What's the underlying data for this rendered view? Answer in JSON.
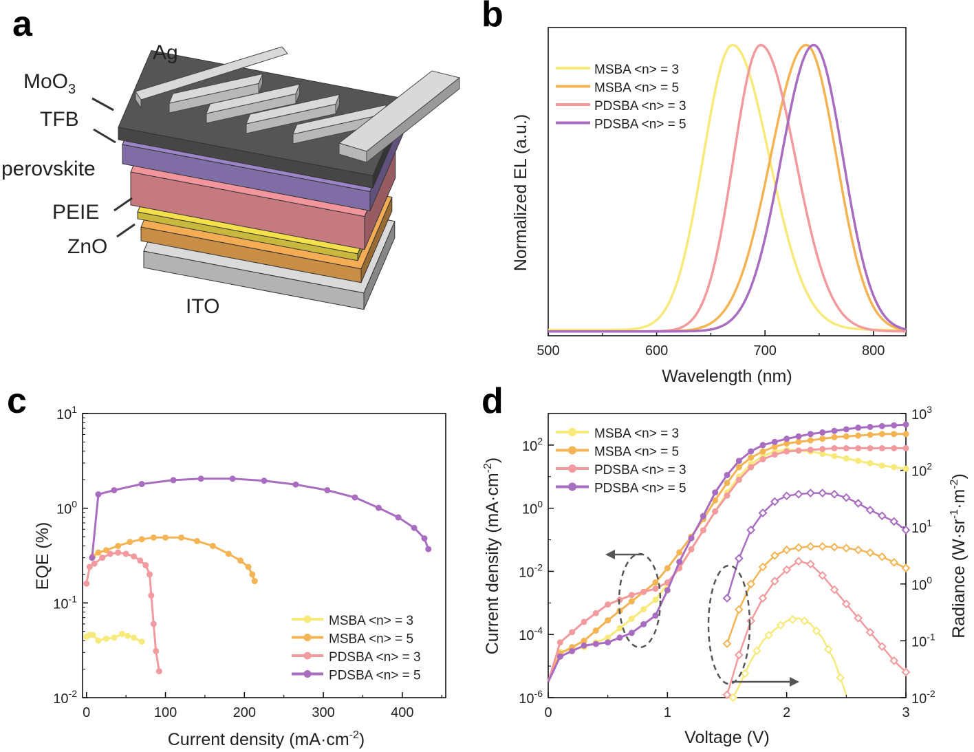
{
  "colors": {
    "msba3": "#f7e97a",
    "msba5": "#f4b454",
    "pdsba3": "#f29a9e",
    "pdsba5": "#a86cc0",
    "axis": "#000000",
    "text": "#222222",
    "arrow": "#555555"
  },
  "panel_a": {
    "letter": "a",
    "layers": {
      "ag": "Ag",
      "moo3": "MoO",
      "moo3_sub": "3",
      "tfb": "TFB",
      "perovskite": "perovskite",
      "peie": "PEIE",
      "zno": "ZnO",
      "ito": "ITO"
    },
    "layer_colors": {
      "ag": "#d2d2d2",
      "moo3": "#555555",
      "tfb": "#9d85c9",
      "perovskite": "#f2959c",
      "peie": "#f4e04a",
      "zno": "#f5ad55",
      "ito": "#dadada"
    }
  },
  "chart_data": [
    {
      "panel": "b",
      "type": "line",
      "xlabel": "Wavelength (nm)",
      "ylabel": "Normalized EL (a.u.)",
      "xlim": [
        500,
        830
      ],
      "ylim": [
        0,
        1.06
      ],
      "xticks": [
        "500",
        "600",
        "700",
        "800"
      ],
      "grid": false,
      "legend_position": "top-left",
      "series": [
        {
          "name": "MSBA <n> = 3",
          "color_key": "msba3",
          "peak": 670,
          "sigma_left": 27,
          "sigma_right": 34,
          "baseline": 0.02
        },
        {
          "name": "MSBA <n> = 5",
          "color_key": "msba5",
          "peak": 738,
          "sigma_left": 33,
          "sigma_right": 28,
          "baseline": 0.015
        },
        {
          "name": "PDSBA <n> = 3",
          "color_key": "pdsba3",
          "peak": 696,
          "sigma_left": 25,
          "sigma_right": 32,
          "baseline": 0.015
        },
        {
          "name": "PDSBA <n> = 5",
          "color_key": "pdsba5",
          "peak": 745,
          "sigma_left": 30,
          "sigma_right": 27,
          "baseline": 0.015
        }
      ]
    },
    {
      "panel": "c",
      "type": "scatter",
      "xlabel": "Current density (mA·cm",
      "xlabel_sup": "-2",
      "xlabel_end": ")",
      "ylabel": "EQE (%)",
      "xlim": [
        -5,
        455
      ],
      "ylim_log10": [
        -2,
        1
      ],
      "ytick_exponents": [
        "1",
        "0",
        "-1",
        "-2"
      ],
      "xticks": [
        "0",
        "100",
        "200",
        "300",
        "400"
      ],
      "grid": false,
      "legend_position": "bottom-right",
      "series": [
        {
          "name": "MSBA <n> = 3",
          "color_key": "msba3",
          "x": [
            0,
            4,
            8,
            15,
            25,
            35,
            45,
            52,
            60,
            70
          ],
          "y": [
            0.044,
            0.046,
            0.046,
            0.04,
            0.042,
            0.043,
            0.047,
            0.045,
            0.043,
            0.039
          ]
        },
        {
          "name": "MSBA <n> = 5",
          "color_key": "msba5",
          "x": [
            8,
            15,
            25,
            40,
            55,
            70,
            85,
            100,
            120,
            140,
            160,
            180,
            195,
            205,
            210,
            213
          ],
          "y": [
            0.31,
            0.34,
            0.36,
            0.4,
            0.44,
            0.47,
            0.49,
            0.49,
            0.49,
            0.45,
            0.4,
            0.33,
            0.28,
            0.24,
            0.2,
            0.17
          ]
        },
        {
          "name": "PDSBA <n> = 3",
          "color_key": "pdsba3",
          "x": [
            0,
            4,
            10,
            20,
            30,
            40,
            50,
            60,
            68,
            75,
            80,
            82,
            85,
            88,
            92
          ],
          "y": [
            0.16,
            0.24,
            0.26,
            0.3,
            0.33,
            0.34,
            0.33,
            0.31,
            0.28,
            0.25,
            0.2,
            0.12,
            0.06,
            0.031,
            0.019
          ]
        },
        {
          "name": "PDSBA <n> = 5",
          "color_key": "pdsba5",
          "x": [
            7,
            15,
            35,
            70,
            110,
            145,
            185,
            225,
            265,
            305,
            340,
            370,
            395,
            415,
            428,
            433
          ],
          "y": [
            0.3,
            1.4,
            1.55,
            1.8,
            1.98,
            2.05,
            2.05,
            1.95,
            1.78,
            1.55,
            1.3,
            1.01,
            0.8,
            0.62,
            0.48,
            0.37
          ]
        }
      ]
    },
    {
      "panel": "d",
      "type": "line",
      "xlabel": "Voltage (V)",
      "ylabel_left": "Current density (mA·cm",
      "ylabel_left_sup": "-2",
      "ylabel_left_end": ")",
      "ylabel_right": "Radiance (W·sr",
      "ylabel_right_sup1": "-1",
      "ylabel_right_mid": "·m",
      "ylabel_right_sup2": "-2",
      "ylabel_right_end": ")",
      "xlim": [
        0,
        3
      ],
      "xticks": [
        "0",
        "1",
        "2",
        "3"
      ],
      "ylim_left_log10": [
        -6,
        3
      ],
      "ytick_left_exponents": [
        "2",
        "0",
        "-2",
        "-4",
        "-6"
      ],
      "ylim_right_log10": [
        -2,
        3
      ],
      "ytick_right_exponents": [
        "3",
        "2",
        "1",
        "0",
        "-1",
        "-2"
      ],
      "grid": false,
      "legend_position": "top-left",
      "current_density": [
        {
          "name": "MSBA <n> = 3",
          "color_key": "msba3",
          "v": [
            0,
            0.1,
            0.3,
            0.5,
            0.7,
            0.9,
            1.0,
            1.1,
            1.2,
            1.3,
            1.4,
            1.5,
            1.6,
            1.7,
            1.8,
            1.9,
            2.0,
            2.2,
            2.4,
            2.6,
            2.8,
            3.0
          ],
          "log10_j": [
            -5.5,
            -4.55,
            -4.4,
            -4.1,
            -3.5,
            -2.9,
            -2.4,
            -1.9,
            -1.3,
            -0.7,
            -0.1,
            0.5,
            1.0,
            1.4,
            1.65,
            1.8,
            1.85,
            1.8,
            1.65,
            1.5,
            1.35,
            1.25
          ]
        },
        {
          "name": "MSBA <n> = 5",
          "color_key": "msba5",
          "v": [
            0,
            0.1,
            0.3,
            0.5,
            0.7,
            0.9,
            1.0,
            1.1,
            1.2,
            1.3,
            1.4,
            1.5,
            1.6,
            1.7,
            1.8,
            1.9,
            2.0,
            2.2,
            2.4,
            2.6,
            2.8,
            3.0
          ],
          "log10_j": [
            -5.5,
            -4.6,
            -4.2,
            -3.55,
            -2.95,
            -2.35,
            -1.9,
            -1.4,
            -0.9,
            -0.35,
            0.25,
            0.8,
            1.3,
            1.6,
            1.8,
            1.95,
            2.05,
            2.15,
            2.25,
            2.3,
            2.35,
            2.35
          ]
        },
        {
          "name": "PDSBA <n> = 3",
          "color_key": "pdsba3",
          "v": [
            0,
            0.1,
            0.3,
            0.5,
            0.7,
            0.9,
            1.0,
            1.1,
            1.2,
            1.3,
            1.4,
            1.5,
            1.6,
            1.7,
            1.8,
            1.9,
            2.0,
            2.2,
            2.4,
            2.6,
            2.8,
            3.0
          ],
          "log10_j": [
            -5.5,
            -4.25,
            -3.6,
            -3.05,
            -2.75,
            -2.55,
            -2.35,
            -1.9,
            -1.3,
            -0.7,
            -0.1,
            0.4,
            0.9,
            1.3,
            1.55,
            1.7,
            1.8,
            1.85,
            1.9,
            1.9,
            1.9,
            1.9
          ]
        },
        {
          "name": "PDSBA <n> = 5",
          "color_key": "pdsba5",
          "v": [
            0,
            0.1,
            0.3,
            0.5,
            0.7,
            0.9,
            1.0,
            1.1,
            1.2,
            1.3,
            1.4,
            1.5,
            1.6,
            1.7,
            1.8,
            1.9,
            2.0,
            2.2,
            2.4,
            2.6,
            2.8,
            3.0
          ],
          "log10_j": [
            -5.5,
            -4.7,
            -4.35,
            -4.25,
            -3.95,
            -3.4,
            -2.6,
            -1.7,
            -0.95,
            -0.25,
            0.5,
            1.05,
            1.5,
            1.8,
            2.0,
            2.1,
            2.2,
            2.35,
            2.45,
            2.55,
            2.6,
            2.65
          ]
        }
      ],
      "radiance": [
        {
          "name": "MSBA <n> = 3",
          "color_key": "msba3",
          "v": [
            1.55,
            1.6,
            1.7,
            1.8,
            1.9,
            2.0,
            2.1,
            2.2,
            2.3,
            2.4,
            2.5
          ],
          "log10_r": [
            -2.0,
            -1.8,
            -1.35,
            -1.0,
            -0.8,
            -0.65,
            -0.6,
            -0.7,
            -0.95,
            -1.35,
            -1.95
          ]
        },
        {
          "name": "MSBA <n> = 5",
          "color_key": "msba5",
          "v": [
            1.5,
            1.55,
            1.6,
            1.7,
            1.8,
            1.9,
            2.0,
            2.1,
            2.2,
            2.3,
            2.4,
            2.5,
            2.6,
            2.7,
            2.8,
            2.9,
            3.0
          ],
          "log10_r": [
            -1.05,
            -0.75,
            -0.45,
            0.0,
            0.3,
            0.5,
            0.6,
            0.64,
            0.66,
            0.66,
            0.65,
            0.63,
            0.6,
            0.55,
            0.48,
            0.38,
            0.28
          ]
        },
        {
          "name": "PDSBA <n> = 3",
          "color_key": "pdsba3",
          "v": [
            1.5,
            1.55,
            1.6,
            1.7,
            1.8,
            1.9,
            2.0,
            2.1,
            2.2,
            2.3,
            2.4,
            2.5,
            2.6,
            2.7,
            2.8,
            2.9,
            3.0
          ],
          "log10_r": [
            -1.95,
            -1.6,
            -1.25,
            -0.65,
            -0.25,
            0.05,
            0.25,
            0.4,
            0.35,
            0.15,
            -0.1,
            -0.35,
            -0.6,
            -0.85,
            -1.1,
            -1.35,
            -1.55
          ]
        },
        {
          "name": "PDSBA <n> = 5",
          "color_key": "pdsba5",
          "v": [
            1.5,
            1.55,
            1.6,
            1.7,
            1.8,
            1.9,
            2.0,
            2.1,
            2.2,
            2.3,
            2.4,
            2.5,
            2.6,
            2.7,
            2.8,
            2.9,
            3.0
          ],
          "log10_r": [
            -0.25,
            0.1,
            0.45,
            0.95,
            1.25,
            1.45,
            1.55,
            1.58,
            1.6,
            1.6,
            1.58,
            1.52,
            1.42,
            1.3,
            1.2,
            1.1,
            0.95
          ]
        }
      ]
    }
  ]
}
